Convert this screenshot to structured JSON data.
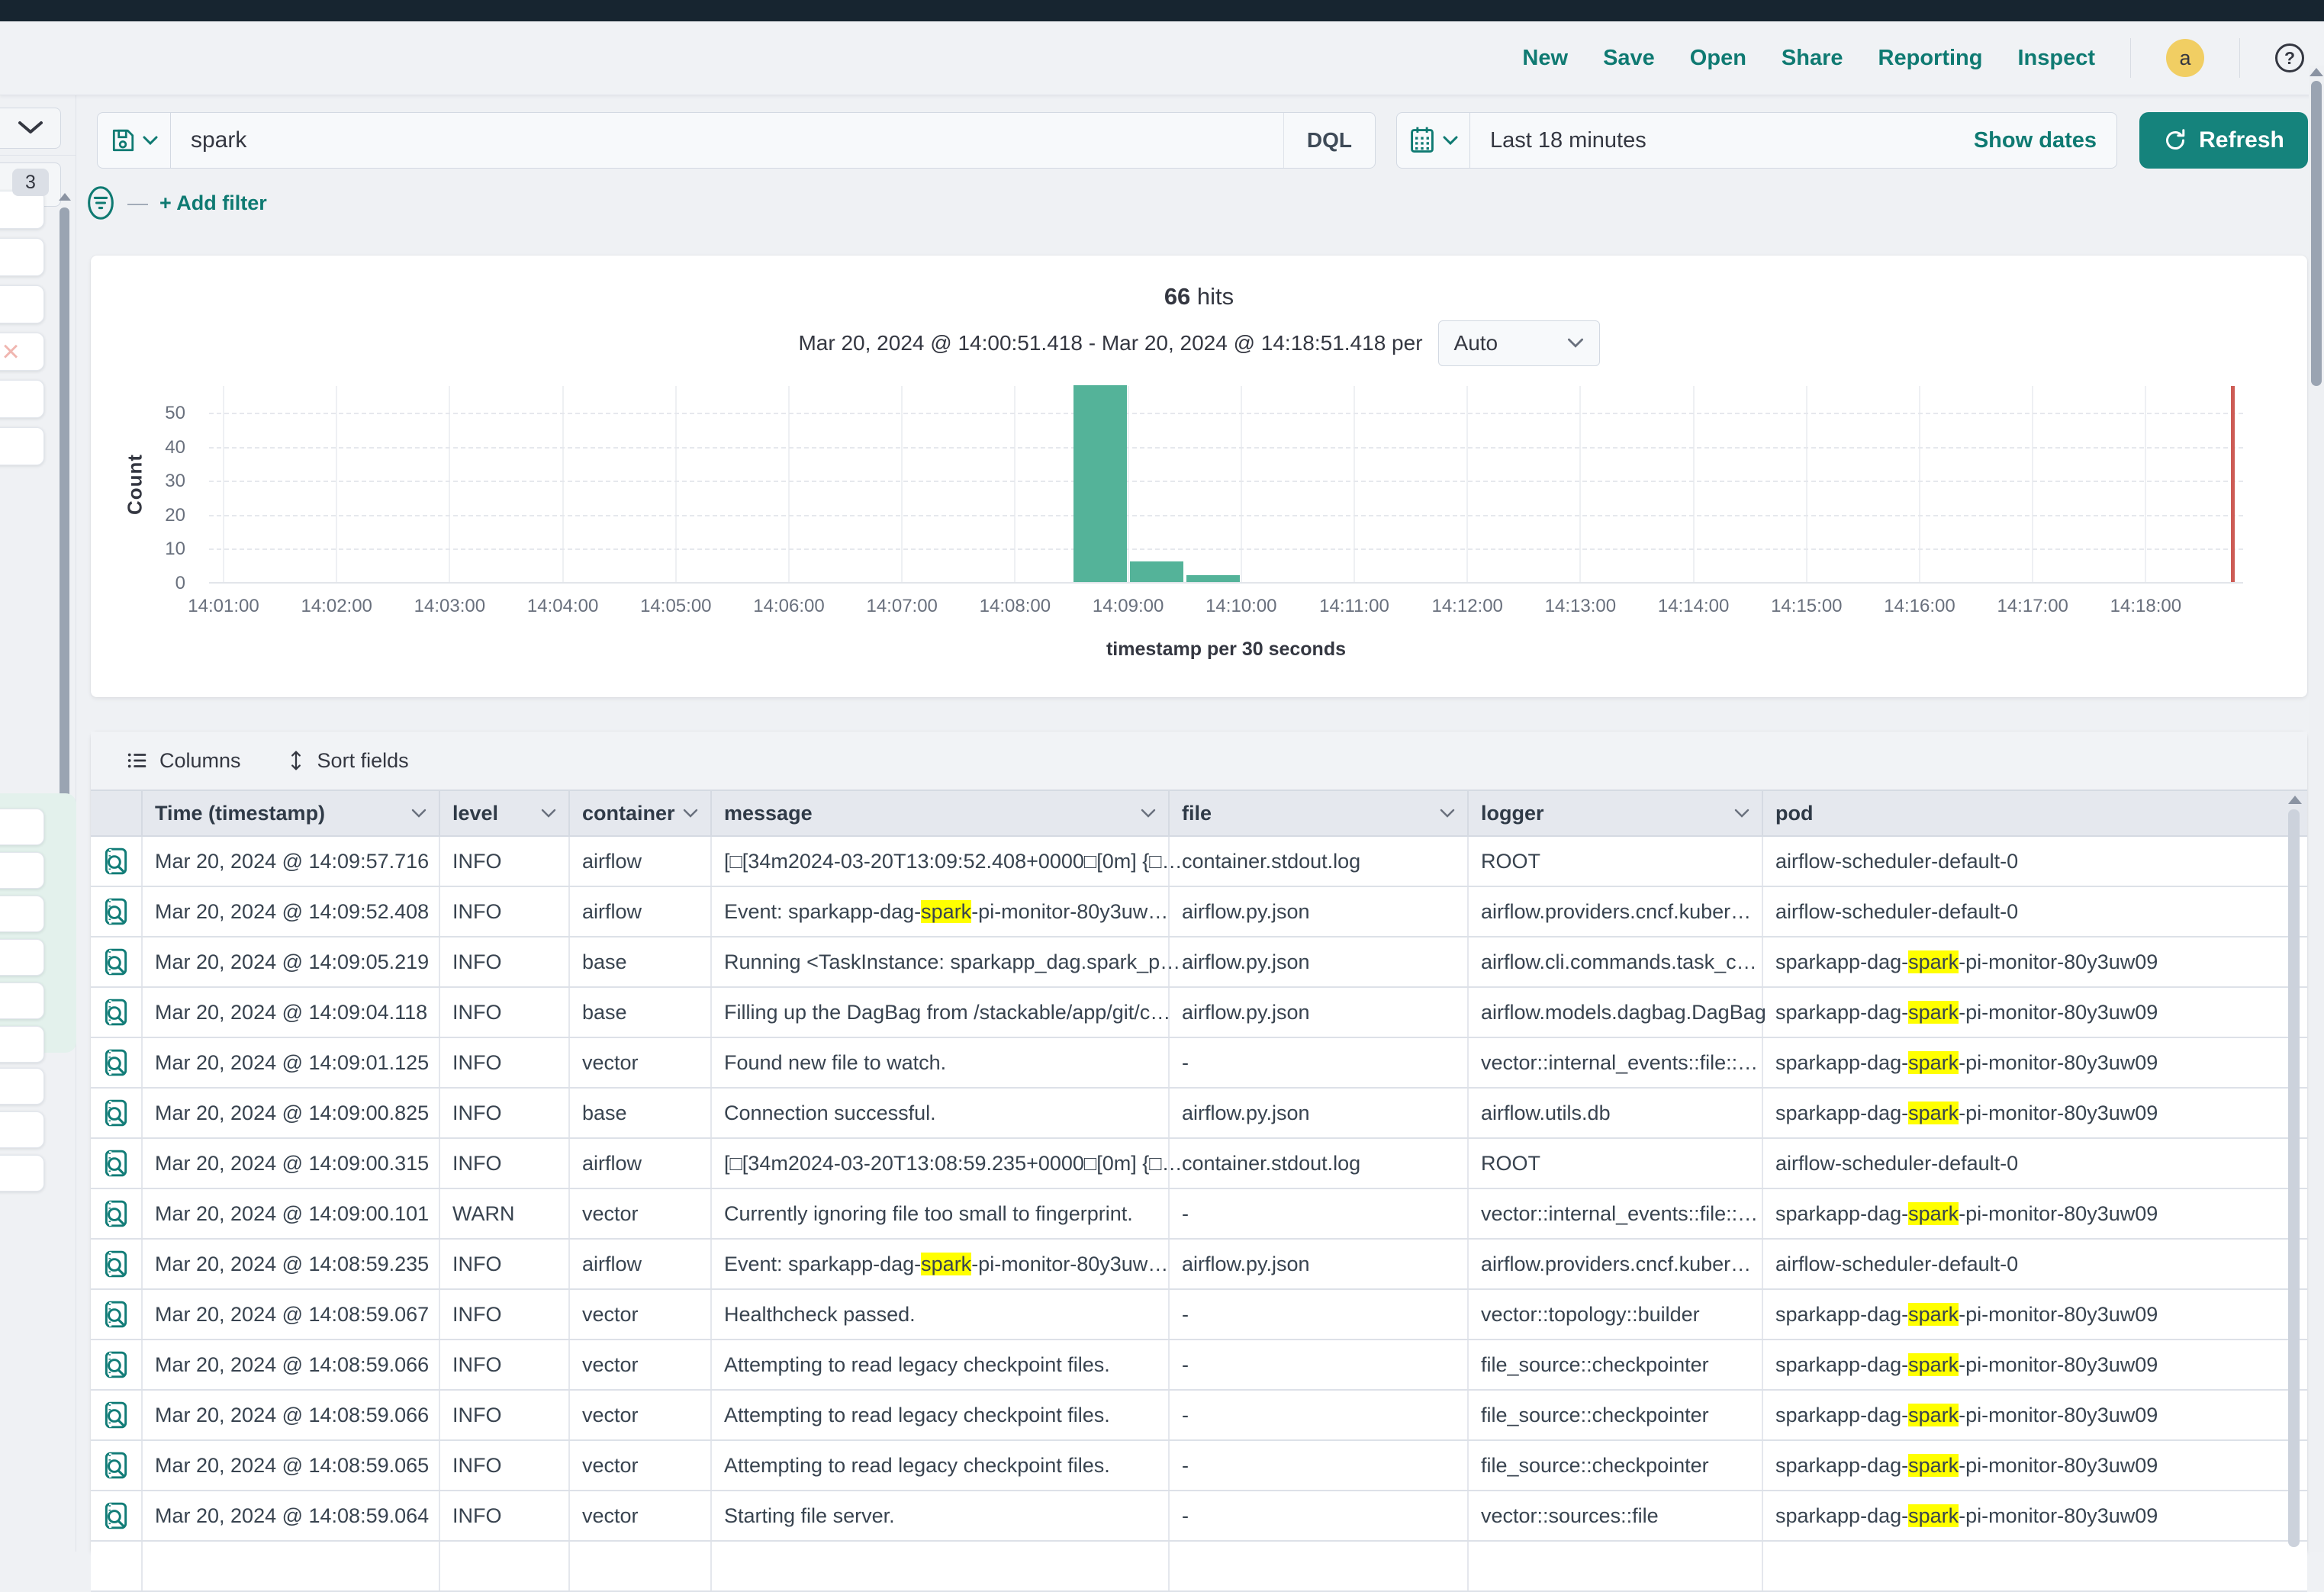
{
  "topnav": {
    "items": [
      "New",
      "Save",
      "Open",
      "Share",
      "Reporting",
      "Inspect"
    ],
    "avatar_initial": "a",
    "help_symbol": "?"
  },
  "search": {
    "query": "spark",
    "language": "DQL"
  },
  "timepicker": {
    "value": "Last 18 minutes",
    "show_dates_label": "Show dates",
    "refresh_label": "Refresh"
  },
  "filter_bar": {
    "add_filter_label": "+ Add filter"
  },
  "sidebar": {
    "badge_count": "3"
  },
  "chart_data": {
    "type": "bar",
    "title": "66 hits",
    "title_count": "66",
    "title_label": "hits",
    "subtitle": "Mar 20, 2024 @ 14:00:51.418 - Mar 20, 2024 @ 14:18:51.418 per",
    "interval_selected": "Auto",
    "ylabel": "Count",
    "xlabel": "timestamp per 30 seconds",
    "x_ticks": [
      "14:01:00",
      "14:02:00",
      "14:03:00",
      "14:04:00",
      "14:05:00",
      "14:06:00",
      "14:07:00",
      "14:08:00",
      "14:09:00",
      "14:10:00",
      "14:11:00",
      "14:12:00",
      "14:13:00",
      "14:14:00",
      "14:15:00",
      "14:16:00",
      "14:17:00",
      "14:18:00"
    ],
    "y_ticks": [
      0,
      10,
      20,
      30,
      40,
      50
    ],
    "ylim": [
      0,
      58
    ],
    "grid": true,
    "legend": false,
    "bucket_seconds": 30,
    "buckets": [
      {
        "time": "14:08:30",
        "count": 58
      },
      {
        "time": "14:09:00",
        "count": 6
      },
      {
        "time": "14:09:30",
        "count": 2
      }
    ],
    "current_time_marker": "14:18:45",
    "bar_color": "#54b399",
    "marker_color": "#cd5c55"
  },
  "table": {
    "toolbar": {
      "columns_label": "Columns",
      "sort_fields_label": "Sort fields"
    },
    "headers": [
      "Time (timestamp)",
      "level",
      "container",
      "message",
      "file",
      "logger",
      "pod"
    ],
    "highlight_term": "spark",
    "rows": [
      [
        "Mar 20, 2024 @ 14:09:57.716",
        "INFO",
        "airflow",
        "[□[34m2024-03-20T13:09:52.408+0000□[0m] {□…",
        "container.stdout.log",
        "ROOT",
        "airflow-scheduler-default-0"
      ],
      [
        "Mar 20, 2024 @ 14:09:52.408",
        "INFO",
        "airflow",
        "Event: sparkapp-dag-spark-pi-monitor-80y3uw…",
        "airflow.py.json",
        "airflow.providers.cncf.kuber…",
        "airflow-scheduler-default-0"
      ],
      [
        "Mar 20, 2024 @ 14:09:05.219",
        "INFO",
        "base",
        "Running <TaskInstance: sparkapp_dag.spark_p…",
        "airflow.py.json",
        "airflow.cli.commands.task_c…",
        "sparkapp-dag-spark-pi-monitor-80y3uw09"
      ],
      [
        "Mar 20, 2024 @ 14:09:04.118",
        "INFO",
        "base",
        "Filling up the DagBag from /stackable/app/git/c…",
        "airflow.py.json",
        "airflow.models.dagbag.DagBag",
        "sparkapp-dag-spark-pi-monitor-80y3uw09"
      ],
      [
        "Mar 20, 2024 @ 14:09:01.125",
        "INFO",
        "vector",
        "Found new file to watch.",
        "-",
        "vector::internal_events::file::…",
        "sparkapp-dag-spark-pi-monitor-80y3uw09"
      ],
      [
        "Mar 20, 2024 @ 14:09:00.825",
        "INFO",
        "base",
        "Connection successful.",
        "airflow.py.json",
        "airflow.utils.db",
        "sparkapp-dag-spark-pi-monitor-80y3uw09"
      ],
      [
        "Mar 20, 2024 @ 14:09:00.315",
        "INFO",
        "airflow",
        "[□[34m2024-03-20T13:08:59.235+0000□[0m] {□…",
        "container.stdout.log",
        "ROOT",
        "airflow-scheduler-default-0"
      ],
      [
        "Mar 20, 2024 @ 14:09:00.101",
        "WARN",
        "vector",
        "Currently ignoring file too small to fingerprint.",
        "-",
        "vector::internal_events::file::…",
        "sparkapp-dag-spark-pi-monitor-80y3uw09"
      ],
      [
        "Mar 20, 2024 @ 14:08:59.235",
        "INFO",
        "airflow",
        "Event: sparkapp-dag-spark-pi-monitor-80y3uw…",
        "airflow.py.json",
        "airflow.providers.cncf.kuber…",
        "airflow-scheduler-default-0"
      ],
      [
        "Mar 20, 2024 @ 14:08:59.067",
        "INFO",
        "vector",
        "Healthcheck passed.",
        "-",
        "vector::topology::builder",
        "sparkapp-dag-spark-pi-monitor-80y3uw09"
      ],
      [
        "Mar 20, 2024 @ 14:08:59.066",
        "INFO",
        "vector",
        "Attempting to read legacy checkpoint files.",
        "-",
        "file_source::checkpointer",
        "sparkapp-dag-spark-pi-monitor-80y3uw09"
      ],
      [
        "Mar 20, 2024 @ 14:08:59.066",
        "INFO",
        "vector",
        "Attempting to read legacy checkpoint files.",
        "-",
        "file_source::checkpointer",
        "sparkapp-dag-spark-pi-monitor-80y3uw09"
      ],
      [
        "Mar 20, 2024 @ 14:08:59.065",
        "INFO",
        "vector",
        "Attempting to read legacy checkpoint files.",
        "-",
        "file_source::checkpointer",
        "sparkapp-dag-spark-pi-monitor-80y3uw09"
      ],
      [
        "Mar 20, 2024 @ 14:08:59.064",
        "INFO",
        "vector",
        "Starting file server.",
        "-",
        "vector::sources::file",
        "sparkapp-dag-spark-pi-monitor-80y3uw09"
      ]
    ]
  }
}
